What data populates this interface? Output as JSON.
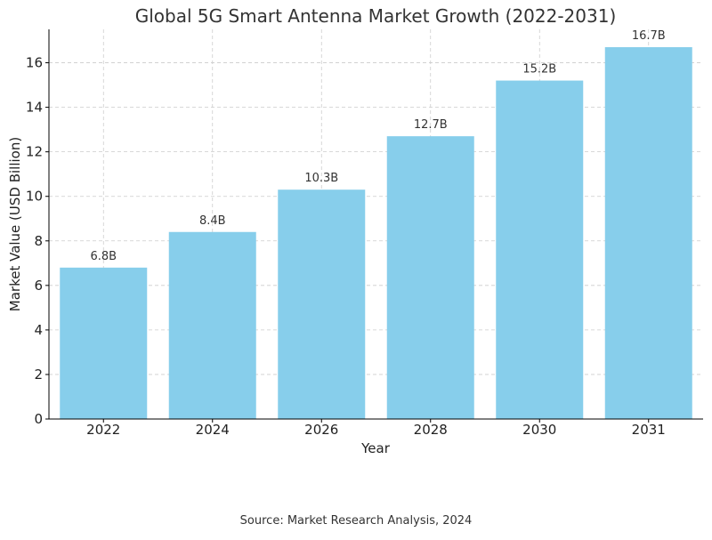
{
  "chart_data": {
    "type": "bar",
    "title": "Global 5G Smart Antenna Market Growth (2022-2031)",
    "xlabel": "Year",
    "ylabel": "Market Value (USD Billion)",
    "categories": [
      "2022",
      "2024",
      "2026",
      "2028",
      "2030",
      "2031"
    ],
    "values": [
      6.8,
      8.4,
      10.3,
      12.7,
      15.2,
      16.7
    ],
    "data_labels": [
      "6.8B",
      "8.4B",
      "10.3B",
      "12.7B",
      "15.2B",
      "16.7B"
    ],
    "y_ticks": [
      "0",
      "2",
      "4",
      "6",
      "8",
      "10",
      "12",
      "14",
      "16"
    ],
    "ylim": [
      0,
      17.5
    ],
    "grid": true,
    "grid_style": "dashed",
    "bar_color": "#87CEEB"
  },
  "source_note": "Source: Market Research Analysis, 2024"
}
